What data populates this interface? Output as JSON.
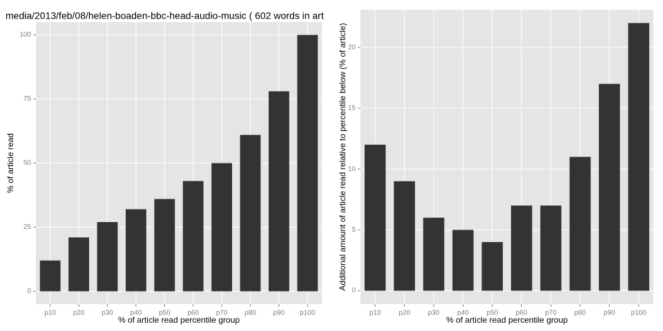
{
  "chart_data": [
    {
      "type": "bar",
      "title": "media/2013/feb/08/helen-boaden-bbc-head-audio-music ( 602 words in art",
      "x_label": "% of article read percentile group",
      "y_label": "% of article read",
      "categories": [
        "p10",
        "p20",
        "p30",
        "p40",
        "p50",
        "p60",
        "p70",
        "p80",
        "p90",
        "p100"
      ],
      "values": [
        12,
        21,
        27,
        32,
        36,
        43,
        50,
        61,
        78,
        100
      ],
      "color": "#333333",
      "ylim": [
        -5,
        105
      ],
      "yticks": [
        0,
        25,
        50,
        75,
        100
      ],
      "grid": true
    },
    {
      "type": "bar",
      "x_label": "% of article read percentile group",
      "y_label": "Additional amount of article read relative to percentile below (% of article)",
      "categories": [
        "p10",
        "p20",
        "p30",
        "p40",
        "p50",
        "p60",
        "p70",
        "p80",
        "p90",
        "p100"
      ],
      "values": [
        12,
        9,
        6,
        5,
        4,
        7,
        7,
        11,
        17,
        22
      ],
      "color": "#333333",
      "ylim": [
        -1.1,
        23.1
      ],
      "yticks": [
        0,
        5,
        10,
        15,
        20
      ],
      "grid": true
    }
  ]
}
